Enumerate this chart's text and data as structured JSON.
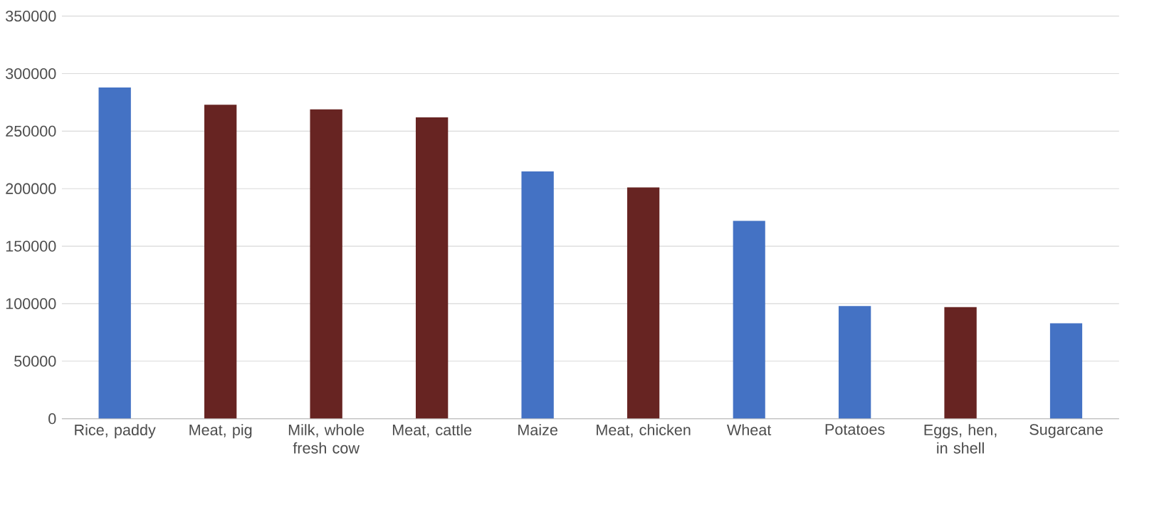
{
  "chart_data": {
    "type": "bar",
    "categories": [
      "Rice, paddy",
      "Meat, pig",
      "Milk, whole fresh cow",
      "Meat, cattle",
      "Maize",
      "Meat, chicken",
      "Wheat",
      "Potatoes",
      "Eggs, hen, in shell",
      "Sugarcane"
    ],
    "values": [
      288000,
      273000,
      269000,
      262000,
      215000,
      201000,
      172000,
      98000,
      97000,
      83000
    ],
    "colors": [
      "#4472c4",
      "#672422",
      "#672422",
      "#672422",
      "#4472c4",
      "#672422",
      "#4472c4",
      "#4472c4",
      "#672422",
      "#4472c4"
    ],
    "ylim": [
      0,
      350000
    ],
    "yticks": [
      0,
      50000,
      100000,
      150000,
      200000,
      250000,
      300000,
      350000
    ],
    "grid": "y"
  }
}
